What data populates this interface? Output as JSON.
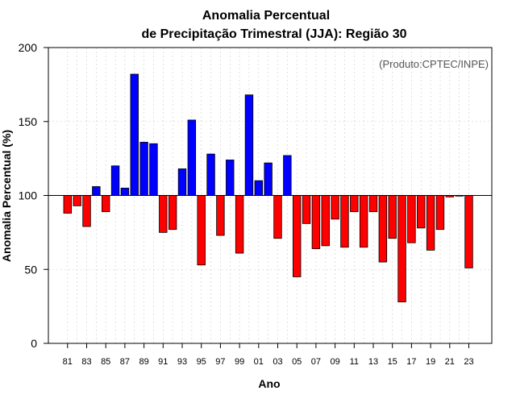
{
  "chart_data": {
    "type": "bar",
    "title_line1": "Anomalia Percentual",
    "title_line2": "de Precipitação Trimestral (JJA): Região 30",
    "xlabel": "Ano",
    "ylabel": "Anomalia Percentual (%)",
    "annotation": "(Produto:CPTEC/INPE)",
    "ylim": [
      0,
      200
    ],
    "yticks": [
      0,
      50,
      100,
      150,
      200
    ],
    "baseline": 100,
    "grid": true,
    "colors": {
      "above": "#0000ff",
      "below": "#ff0000",
      "edge": "#000000",
      "grid": "#cccccc"
    },
    "x_tick_labels": [
      "81",
      "83",
      "85",
      "87",
      "89",
      "91",
      "93",
      "95",
      "97",
      "99",
      "01",
      "03",
      "05",
      "07",
      "09",
      "11",
      "13",
      "15",
      "17",
      "19",
      "21",
      "23"
    ],
    "categories": [
      "1981",
      "1982",
      "1983",
      "1984",
      "1985",
      "1986",
      "1987",
      "1988",
      "1989",
      "1990",
      "1991",
      "1992",
      "1993",
      "1994",
      "1995",
      "1996",
      "1997",
      "1998",
      "1999",
      "2000",
      "2001",
      "2002",
      "2003",
      "2004",
      "2005",
      "2006",
      "2007",
      "2008",
      "2009",
      "2010",
      "2011",
      "2012",
      "2013",
      "2014",
      "2015",
      "2016",
      "2017",
      "2018",
      "2019",
      "2020",
      "2021",
      "2022",
      "2023"
    ],
    "values": [
      88,
      93,
      79,
      106,
      89,
      120,
      105,
      182,
      136,
      135,
      75,
      77,
      118,
      151,
      53,
      128,
      73,
      124,
      61,
      168,
      110,
      122,
      71,
      127,
      45,
      81,
      64,
      66,
      84,
      65,
      89,
      65,
      89,
      55,
      71,
      28,
      68,
      78,
      63,
      77,
      99,
      100,
      51
    ]
  }
}
